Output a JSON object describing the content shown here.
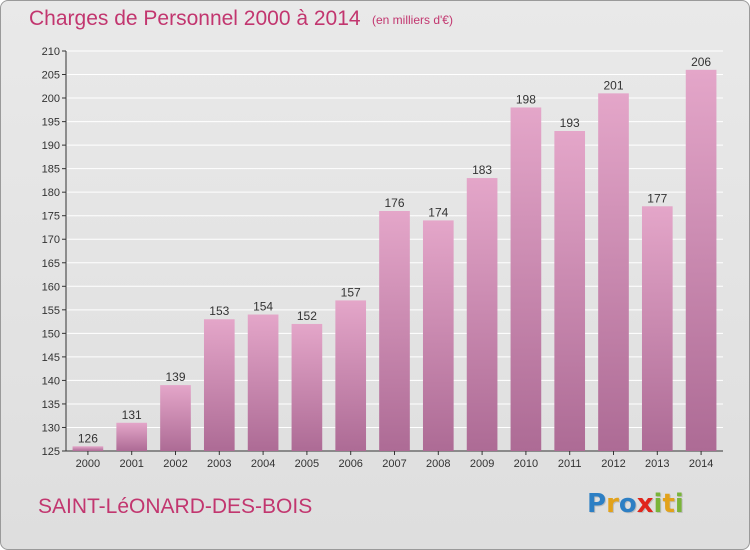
{
  "title": "Charges de Personnel 2000 à 2014",
  "subtitle": "(en milliers d'€)",
  "commune": "SAINT-LéONARD-DES-BOIS",
  "logo": {
    "text": "Proxiti",
    "letters": [
      {
        "ch": "P",
        "color": "#2d7fc4"
      },
      {
        "ch": "r",
        "color": "#e2a21b"
      },
      {
        "ch": "o",
        "color": "#2d7fc4"
      },
      {
        "ch": "x",
        "color": "#e0261c"
      },
      {
        "ch": "i",
        "color": "#7ab43a"
      },
      {
        "ch": "t",
        "color": "#e2a21b"
      },
      {
        "ch": "i",
        "color": "#7ab43a"
      }
    ]
  },
  "colors": {
    "accent": "#c2366f",
    "bar_top": "#e4a6c9",
    "bar_bottom": "#ad6b95",
    "grid": "#ffffff"
  },
  "chart_data": {
    "type": "bar",
    "categories": [
      "2000",
      "2001",
      "2002",
      "2003",
      "2004",
      "2005",
      "2006",
      "2007",
      "2008",
      "2009",
      "2010",
      "2011",
      "2012",
      "2013",
      "2014"
    ],
    "values": [
      126,
      131,
      139,
      153,
      154,
      152,
      157,
      176,
      174,
      183,
      198,
      193,
      201,
      177,
      206
    ],
    "data_labels": [
      "126",
      "131",
      "139",
      "153",
      "154",
      "152",
      "157",
      "176",
      "174",
      "183",
      "198",
      "193",
      "201",
      "177",
      "206"
    ],
    "ylim": [
      125,
      210
    ],
    "y_ticks": [
      125,
      130,
      135,
      140,
      145,
      150,
      155,
      160,
      165,
      170,
      175,
      180,
      185,
      190,
      195,
      200,
      205,
      210
    ],
    "grid": true,
    "xlabel": "",
    "ylabel": ""
  }
}
